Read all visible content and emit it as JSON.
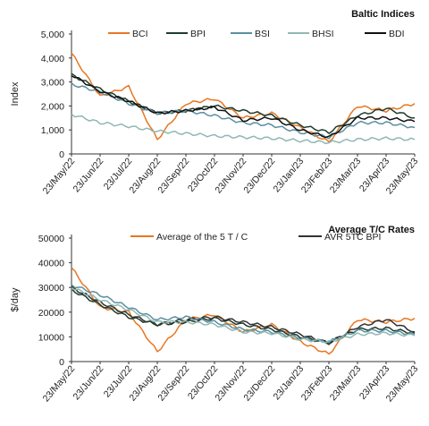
{
  "chart_data": [
    {
      "type": "line",
      "title": "Baltic Indices",
      "xlabel": "",
      "ylabel": "Index",
      "ylim": [
        0,
        5000
      ],
      "yticks": [
        "0",
        "1,000",
        "2,000",
        "3,000",
        "4,000",
        "5,000"
      ],
      "grid": false,
      "legend_position": "top",
      "categories": [
        "23/May/22",
        "23/Jun/22",
        "23/Jul/22",
        "23/Aug/22",
        "23/Sep/22",
        "23/Oct/22",
        "23/Nov/22",
        "23/Dec/22",
        "23/Jan/23",
        "23/Feb/23",
        "23/Mar/23",
        "23/Apr/23",
        "23/May/23"
      ],
      "series": [
        {
          "name": "BCI",
          "color": "#e87722",
          "values": [
            4200,
            2400,
            2800,
            600,
            2100,
            2300,
            1500,
            1700,
            1100,
            500,
            2000,
            1800,
            2100
          ]
        },
        {
          "name": "BPI",
          "color": "#1f3b2c",
          "values": [
            3300,
            2700,
            2200,
            1700,
            1800,
            2000,
            1800,
            1600,
            1200,
            900,
            1600,
            1900,
            1500
          ]
        },
        {
          "name": "BSI",
          "color": "#5b8fa0",
          "values": [
            2900,
            2600,
            2100,
            1700,
            1800,
            1600,
            1300,
            1200,
            900,
            700,
            1300,
            1300,
            1100
          ]
        },
        {
          "name": "BHSI",
          "color": "#8fb8b3",
          "values": [
            1650,
            1300,
            1150,
            950,
            850,
            750,
            700,
            650,
            550,
            480,
            600,
            650,
            600
          ]
        },
        {
          "name": "BDI",
          "color": "#111111",
          "values": [
            3300,
            2600,
            2200,
            1700,
            1800,
            1950,
            1400,
            1500,
            1000,
            700,
            1500,
            1500,
            1350
          ]
        }
      ]
    },
    {
      "type": "line",
      "title": "Average T/C Rates",
      "xlabel": "",
      "ylabel": "$/day",
      "ylim": [
        0,
        50000
      ],
      "yticks": [
        "0",
        "10000",
        "20000",
        "30000",
        "40000",
        "50000"
      ],
      "grid": false,
      "legend_position": "top",
      "categories": [
        "23/May/22",
        "23/Jun/22",
        "23/Jul/22",
        "23/Aug/22",
        "23/Sep/22",
        "23/Oct/22",
        "23/Nov/22",
        "23/Dec/22",
        "23/Jan/23",
        "23/Feb/23",
        "23/Mar/23",
        "23/Apr/23",
        "23/May/23"
      ],
      "series": [
        {
          "name": "Average of the 5 T / C",
          "color": "#e87722",
          "values": [
            38000,
            22000,
            20000,
            4000,
            17000,
            19000,
            12000,
            15000,
            8000,
            3000,
            17000,
            16000,
            17500
          ]
        },
        {
          "name": "AVR 5TC BPI",
          "color": "#333333",
          "values": [
            30000,
            24000,
            19000,
            15000,
            17000,
            18000,
            16000,
            14000,
            11000,
            7500,
            14000,
            17000,
            12000
          ]
        },
        {
          "name": "",
          "color": "#1f3b2c",
          "values": [
            29000,
            23000,
            18000,
            15000,
            16000,
            17500,
            15000,
            13000,
            10000,
            7500,
            13000,
            13500,
            11500
          ]
        },
        {
          "name": "",
          "color": "#5b8fa0",
          "values": [
            31000,
            27000,
            22000,
            17000,
            18000,
            16000,
            13000,
            12000,
            9500,
            8000,
            12500,
            12500,
            11000
          ]
        },
        {
          "name": "",
          "color": "#8fb8b3",
          "values": [
            30000,
            25000,
            21000,
            16000,
            16000,
            15000,
            12000,
            11500,
            9000,
            8000,
            11000,
            11500,
            10500
          ]
        }
      ]
    }
  ]
}
